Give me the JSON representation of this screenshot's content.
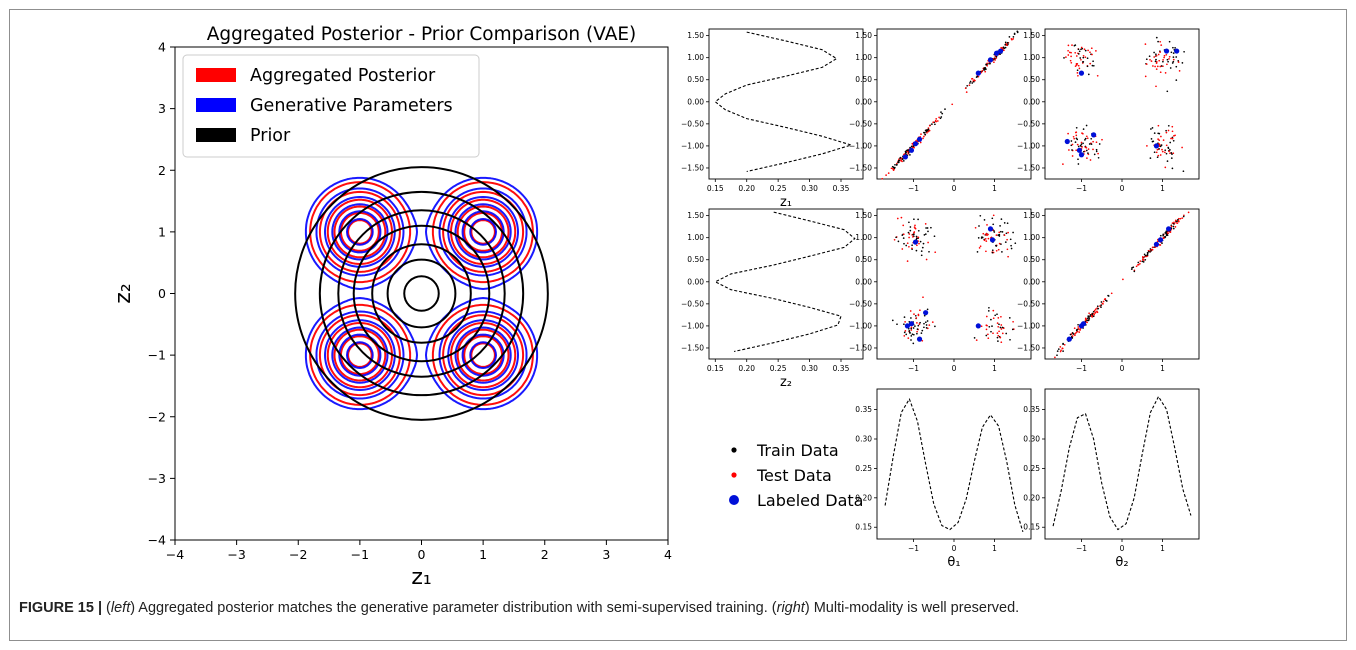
{
  "caption": {
    "label": "FIGURE 15 |",
    "p1": " (",
    "left_word": "left",
    "p2": ") Aggregated posterior matches the generative parameter distribution with semi-supervised training. (",
    "right_word": "right",
    "p3": ") Multi-modality is well preserved."
  },
  "chart_data": [
    {
      "type": "contour",
      "title": "Aggregated Posterior - Prior Comparison (VAE)",
      "xlabel": "z₁",
      "ylabel": "z₂",
      "xlim": [
        -4,
        4
      ],
      "ylim": [
        -4,
        4
      ],
      "xticks": [
        -4,
        -3,
        -2,
        -1,
        0,
        1,
        2,
        3,
        4
      ],
      "yticks": [
        -4,
        -3,
        -2,
        -1,
        0,
        1,
        2,
        3,
        4
      ],
      "legend_position": "top-left",
      "series": [
        {
          "name": "Aggregated Posterior",
          "color": "#ff0000",
          "mixture_centers": [
            [
              -1,
              1
            ],
            [
              1,
              1
            ],
            [
              -1,
              -1
            ],
            [
              1,
              -1
            ]
          ],
          "component_std": 0.35
        },
        {
          "name": "Generative Parameters",
          "color": "#0000ff",
          "mixture_centers": [
            [
              -1,
              1
            ],
            [
              1,
              1
            ],
            [
              -1,
              -1
            ],
            [
              1,
              -1
            ]
          ],
          "component_std": 0.38
        },
        {
          "name": "Prior",
          "color": "#000000",
          "circle_radii": [
            0.28,
            0.55,
            0.8,
            1.1,
            1.35,
            1.65,
            2.05
          ]
        }
      ]
    },
    {
      "type": "line",
      "panel": "z1-marginal",
      "xlabel": "z₁",
      "xlim": [
        0.14,
        0.385
      ],
      "ylim": [
        -1.75,
        1.65
      ],
      "xticks": [
        0.15,
        0.2,
        0.25,
        0.3,
        0.35
      ],
      "yticks": [
        -1.5,
        -1.0,
        -0.5,
        0.0,
        0.5,
        1.0,
        1.5
      ],
      "style": "dashed",
      "x": [
        0.2,
        0.262,
        0.32,
        0.343,
        0.32,
        0.262,
        0.2,
        0.166,
        0.15,
        0.166,
        0.2,
        0.262,
        0.32,
        0.366,
        0.32,
        0.262,
        0.2
      ],
      "y": [
        1.58,
        1.38,
        1.18,
        0.98,
        0.78,
        0.58,
        0.38,
        0.18,
        0.0,
        -0.18,
        -0.38,
        -0.58,
        -0.78,
        -0.98,
        -1.18,
        -1.38,
        -1.58
      ]
    },
    {
      "type": "scatter",
      "panel": "z1-vs-theta1",
      "xlim": [
        -1.9,
        1.9
      ],
      "ylim": [
        -1.75,
        1.65
      ],
      "xticks": [
        -1,
        0,
        1
      ],
      "yticks": [
        -1.5,
        -1.0,
        -0.5,
        0.0,
        0.5,
        1.0,
        1.5
      ],
      "labeled": [
        [
          -1.2,
          -1.25
        ],
        [
          -1.05,
          -1.1
        ],
        [
          -0.95,
          -0.95
        ],
        [
          -0.85,
          -0.85
        ],
        [
          0.6,
          0.65
        ],
        [
          0.9,
          0.95
        ],
        [
          1.05,
          1.1
        ],
        [
          1.15,
          1.15
        ]
      ]
    },
    {
      "type": "scatter",
      "panel": "z1-vs-theta2",
      "xlim": [
        -1.9,
        1.9
      ],
      "ylim": [
        -1.75,
        1.65
      ],
      "xticks": [
        -1,
        0,
        1
      ],
      "yticks": [
        -1.5,
        -1.0,
        -0.5,
        0.0,
        0.5,
        1.0,
        1.5
      ],
      "labeled": [
        [
          -1.0,
          0.65
        ],
        [
          1.1,
          1.15
        ],
        [
          1.35,
          1.15
        ],
        [
          -1.35,
          -0.9
        ],
        [
          -0.7,
          -0.75
        ],
        [
          -1.05,
          -1.1
        ],
        [
          -1.0,
          -1.2
        ],
        [
          0.85,
          -1.0
        ]
      ]
    },
    {
      "type": "line",
      "panel": "z2-marginal",
      "xlabel": "z₂",
      "xlim": [
        0.14,
        0.385
      ],
      "ylim": [
        -1.75,
        1.65
      ],
      "xticks": [
        0.15,
        0.2,
        0.25,
        0.3,
        0.35
      ],
      "yticks": [
        -1.5,
        -1.0,
        -0.5,
        0.0,
        0.5,
        1.0,
        1.5
      ],
      "style": "dashed",
      "x": [
        0.243,
        0.3,
        0.355,
        0.372,
        0.355,
        0.3,
        0.243,
        0.175,
        0.15,
        0.175,
        0.243,
        0.3,
        0.35,
        0.345,
        0.3,
        0.243,
        0.18
      ],
      "y": [
        1.58,
        1.38,
        1.18,
        0.98,
        0.78,
        0.58,
        0.38,
        0.18,
        0.0,
        -0.18,
        -0.38,
        -0.58,
        -0.78,
        -0.98,
        -1.18,
        -1.38,
        -1.58
      ]
    },
    {
      "type": "scatter",
      "panel": "z2-vs-theta1",
      "xlim": [
        -1.9,
        1.9
      ],
      "ylim": [
        -1.75,
        1.65
      ],
      "xticks": [
        -1,
        0,
        1
      ],
      "yticks": [
        -1.5,
        -1.0,
        -0.5,
        0.0,
        0.5,
        1.0,
        1.5
      ],
      "labeled": [
        [
          -0.95,
          0.9
        ],
        [
          0.9,
          1.2
        ],
        [
          0.95,
          0.95
        ],
        [
          -1.05,
          -0.95
        ],
        [
          -1.15,
          -1.0
        ],
        [
          -0.7,
          -0.7
        ],
        [
          -0.85,
          -1.3
        ],
        [
          0.6,
          -1.0
        ]
      ]
    },
    {
      "type": "scatter",
      "panel": "z2-vs-theta2",
      "xlim": [
        -1.9,
        1.9
      ],
      "ylim": [
        -1.75,
        1.65
      ],
      "xticks": [
        -1,
        0,
        1
      ],
      "yticks": [
        -1.5,
        -1.0,
        -0.5,
        0.0,
        0.5,
        1.0,
        1.5
      ],
      "labeled": [
        [
          -1.3,
          -1.3
        ],
        [
          -1.0,
          -1.0
        ],
        [
          -0.95,
          -0.95
        ],
        [
          0.85,
          0.85
        ],
        [
          0.95,
          0.95
        ],
        [
          1.15,
          1.2
        ]
      ]
    },
    {
      "type": "line",
      "panel": "theta1-marginal",
      "xlabel": "θ₁",
      "xlim": [
        -1.9,
        1.9
      ],
      "ylim": [
        0.13,
        0.385
      ],
      "xticks": [
        -1,
        0,
        1
      ],
      "yticks": [
        0.15,
        0.2,
        0.25,
        0.3,
        0.35
      ],
      "style": "dashed",
      "x": [
        -1.7,
        -1.5,
        -1.3,
        -1.1,
        -0.9,
        -0.7,
        -0.5,
        -0.3,
        -0.1,
        0.1,
        0.3,
        0.5,
        0.7,
        0.9,
        1.1,
        1.3,
        1.5,
        1.7
      ],
      "y": [
        0.187,
        0.27,
        0.345,
        0.368,
        0.33,
        0.258,
        0.19,
        0.153,
        0.146,
        0.158,
        0.198,
        0.262,
        0.32,
        0.341,
        0.322,
        0.262,
        0.188,
        0.142
      ]
    },
    {
      "type": "line",
      "panel": "theta2-marginal",
      "xlabel": "θ₂",
      "xlim": [
        -1.9,
        1.9
      ],
      "ylim": [
        0.13,
        0.385
      ],
      "xticks": [
        -1,
        0,
        1
      ],
      "yticks": [
        0.15,
        0.2,
        0.25,
        0.3,
        0.35
      ],
      "style": "dashed",
      "x": [
        -1.7,
        -1.5,
        -1.3,
        -1.1,
        -0.9,
        -0.7,
        -0.5,
        -0.3,
        -0.1,
        0.1,
        0.3,
        0.5,
        0.7,
        0.9,
        1.1,
        1.3,
        1.5,
        1.7
      ],
      "y": [
        0.152,
        0.212,
        0.285,
        0.336,
        0.343,
        0.3,
        0.225,
        0.168,
        0.146,
        0.156,
        0.2,
        0.275,
        0.345,
        0.372,
        0.35,
        0.285,
        0.215,
        0.17
      ]
    }
  ],
  "legend2": {
    "items": [
      {
        "label": "Train Data",
        "color": "#000000"
      },
      {
        "label": "Test Data",
        "color": "#ff0000"
      },
      {
        "label": "Labeled Data",
        "color": "#0010d8"
      }
    ]
  }
}
